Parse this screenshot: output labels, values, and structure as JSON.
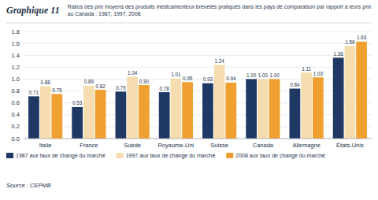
{
  "chart_data": {
    "type": "bar",
    "title": "Graphique 11",
    "subtitle": "Ratios des prix moyens des produits médicamenteux brevetés pratiqués dans les pays de comparaison par rapport à leurs prix\nau Canada : 1987, 1997, 2008",
    "source": "Source : CEPMB",
    "categories": [
      "Italie",
      "France",
      "Suède",
      "Royaume-Uni",
      "Suisse",
      "Canada",
      "Allemagne",
      "États-Unis"
    ],
    "series": [
      {
        "name": "1987 aux taux de change du marché",
        "color": "#1f3864",
        "values": [
          0.71,
          0.53,
          0.79,
          0.78,
          0.93,
          1.0,
          0.84,
          1.36
        ],
        "value_labels": [
          "0.71",
          "0.53",
          "0.79",
          "0.78",
          "0.93",
          "1.00",
          "0.84",
          "1.36"
        ]
      },
      {
        "name": "1997 aux taux de change du marché",
        "color": "#f5ddb0",
        "values": [
          0.88,
          0.89,
          1.04,
          1.01,
          1.24,
          1.0,
          1.11,
          1.56
        ],
        "value_labels": [
          "0.88",
          "0.89",
          "1.04",
          "1.01",
          "1.24",
          "1.00",
          "1.11",
          "1.56"
        ]
      },
      {
        "name": "2008 aux taux de change du marché",
        "color": "#f0a030",
        "values": [
          0.75,
          0.82,
          0.9,
          0.95,
          0.94,
          1.0,
          1.03,
          1.63
        ],
        "value_labels": [
          "0.75",
          "0.82",
          "0.90",
          "0.95",
          "0.94",
          "1.00",
          "1.03",
          "1.63"
        ]
      }
    ],
    "ylim": [
      0.0,
      1.8
    ],
    "yticks": [
      {
        "value": 0.0,
        "label": "0.0"
      },
      0.2,
      0.4,
      0.6,
      0.8,
      {
        "value": 1.0,
        "label": "1.0"
      },
      1.2,
      1.4,
      1.6,
      1.8
    ],
    "grid": true,
    "legend": "bottom",
    "data_labels": true
  }
}
